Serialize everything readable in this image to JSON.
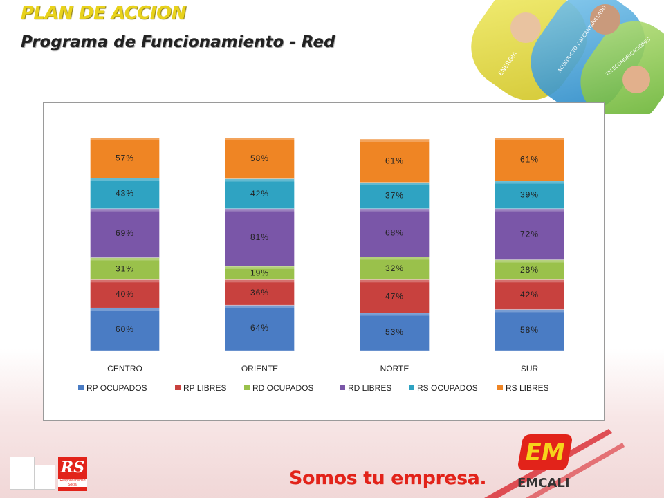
{
  "header": {
    "title": "PLAN DE ACCION",
    "subtitle": "Programa de Funcionamiento - Red"
  },
  "banner": {
    "labels": [
      "ENERGÍA",
      "ACUEDUCTO Y ALCANTARILLADO",
      "TELECOMUNICACIONES"
    ]
  },
  "chart_data": {
    "type": "bar",
    "stacked": true,
    "categories": [
      "CENTRO",
      "ORIENTE",
      "NORTE",
      "SUR"
    ],
    "series": [
      {
        "name": "RP OCUPADOS",
        "color": "#4a7cc4",
        "values": [
          60,
          64,
          53,
          58
        ]
      },
      {
        "name": "RP LIBRES",
        "color": "#c8413e",
        "values": [
          40,
          36,
          47,
          42
        ]
      },
      {
        "name": "RD OCUPADOS",
        "color": "#9ac14b",
        "values": [
          31,
          19,
          32,
          28
        ]
      },
      {
        "name": "RD LIBRES",
        "color": "#7a56a8",
        "values": [
          69,
          81,
          68,
          72
        ]
      },
      {
        "name": "RS OCUPADOS",
        "color": "#2fa3c2",
        "values": [
          43,
          42,
          37,
          39
        ]
      },
      {
        "name": "RS LIBRES",
        "color": "#ef8524",
        "values": [
          57,
          58,
          61,
          61
        ]
      }
    ],
    "value_suffix": "%",
    "legend_position": "bottom",
    "grid": false
  },
  "footer": {
    "slogan": "Somos tu empresa.",
    "logo": "EMCALI",
    "logo_mark": "EM",
    "cert_label": "RS",
    "cert_sub": "Responsabilidad Social"
  }
}
